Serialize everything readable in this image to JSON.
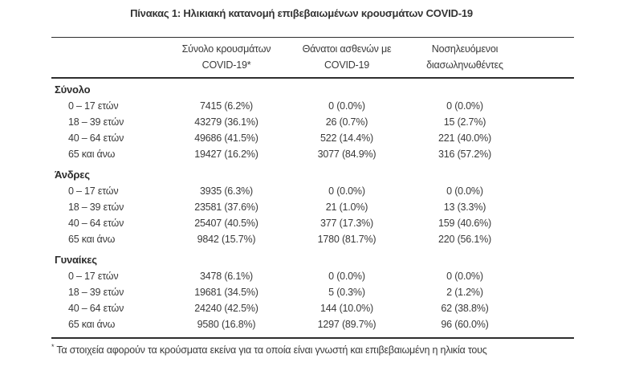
{
  "title": "Πίνακας 1: Ηλικιακή κατανομή επιβεβαιωμένων κρουσμάτων COVID-19",
  "table": {
    "header": {
      "cases_line1": "Σύνολο κρουσμάτων",
      "cases_line2": "COVID-19*",
      "deaths_line1": "Θάνατοι ασθενών με",
      "deaths_line2": "COVID-19",
      "intubated_line1": "Νοσηλευόμενοι",
      "intubated_line2": "διασωληνωθέντες"
    },
    "sections": [
      {
        "label": "Σύνολο",
        "rows": [
          {
            "age": "0 – 17 ετών",
            "cases": "7415 (6.2%)",
            "deaths": "0 (0.0%)",
            "intubated": "0 (0.0%)"
          },
          {
            "age": "18 – 39 ετών",
            "cases": "43279 (36.1%)",
            "deaths": "26 (0.7%)",
            "intubated": "15 (2.7%)"
          },
          {
            "age": "40 – 64 ετών",
            "cases": "49686 (41.5%)",
            "deaths": "522 (14.4%)",
            "intubated": "221 (40.0%)"
          },
          {
            "age": "65 και άνω",
            "cases": "19427 (16.2%)",
            "deaths": "3077 (84.9%)",
            "intubated": "316 (57.2%)"
          }
        ]
      },
      {
        "label": "Άνδρες",
        "rows": [
          {
            "age": "0 – 17 ετών",
            "cases": "3935 (6.3%)",
            "deaths": "0 (0.0%)",
            "intubated": "0 (0.0%)"
          },
          {
            "age": "18 – 39 ετών",
            "cases": "23581 (37.6%)",
            "deaths": "21 (1.0%)",
            "intubated": "13 (3.3%)"
          },
          {
            "age": "40 – 64 ετών",
            "cases": "25407 (40.5%)",
            "deaths": "377 (17.3%)",
            "intubated": "159 (40.6%)"
          },
          {
            "age": "65 και άνω",
            "cases": "9842 (15.7%)",
            "deaths": "1780 (81.7%)",
            "intubated": "220 (56.1%)"
          }
        ]
      },
      {
        "label": "Γυναίκες",
        "rows": [
          {
            "age": "0 – 17 ετών",
            "cases": "3478 (6.1%)",
            "deaths": "0 (0.0%)",
            "intubated": "0 (0.0%)"
          },
          {
            "age": "18 – 39 ετών",
            "cases": "19681 (34.5%)",
            "deaths": "5 (0.3%)",
            "intubated": "2 (1.2%)"
          },
          {
            "age": "40 – 64 ετών",
            "cases": "24240 (42.5%)",
            "deaths": "144 (10.0%)",
            "intubated": "62 (38.8%)"
          },
          {
            "age": "65 και άνω",
            "cases": "9580 (16.8%)",
            "deaths": "1297 (89.7%)",
            "intubated": "96 (60.0%)"
          }
        ]
      }
    ],
    "footnote_marker": "*",
    "footnote": "Τα στοιχεία αφορούν τα κρούσματα εκείνα για τα οποία είναι γνωστή και επιβεβαιωμένη η ηλικία τους"
  }
}
